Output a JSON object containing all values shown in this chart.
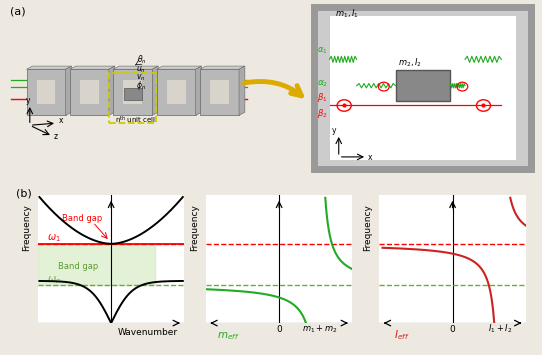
{
  "panel_a_label": "(a)",
  "panel_b_label": "(b)",
  "fig_bg": "#ede8e0",
  "green_curve_color": "#22aa22",
  "red_curve_color": "#cc2222",
  "band_gap_fill_color": "#c8e6b0",
  "band_gap_lower_color": "#6aaa3a",
  "omega1": 0.62,
  "omega_n": 0.3,
  "wavenumber_label": "Wavenumber",
  "frequency_label": "Frequency",
  "m_eff_label": "$m_{eff}$",
  "I_eff_label": "$I_{eff}$",
  "m1m2_label": "$m_1+m_2$",
  "I1I2_label": "$I_1+I_2$"
}
